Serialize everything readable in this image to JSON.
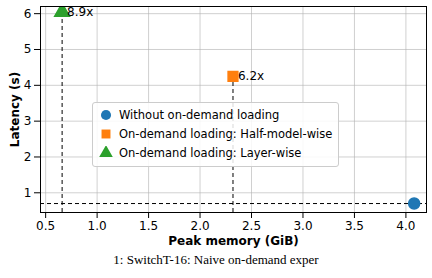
{
  "chart_data": {
    "type": "scatter",
    "caption": "1: SwitchT-16: Naive on-demand exper",
    "x_label": "Peak memory (GiB)",
    "y_label": "Latency (s)",
    "xlim": [
      0.45,
      4.2
    ],
    "xticks": [
      0.5,
      1.0,
      1.5,
      2.0,
      2.5,
      3.0,
      3.5,
      4.0
    ],
    "ylim": [
      0.45,
      6.2
    ],
    "yticks": [
      1,
      2,
      3,
      4,
      5,
      6
    ],
    "grid": true,
    "legend": "center left",
    "series": [
      {
        "name": "Without on-demand loading",
        "color": "#1f77b4",
        "marker": "circle",
        "x": [
          4.08
        ],
        "y": [
          0.7
        ]
      },
      {
        "name": "On-demand loading: Half-model-wise",
        "color": "#ff7f0e",
        "marker": "square",
        "x": [
          2.32
        ],
        "y": [
          4.25
        ],
        "annotation": "6.2x"
      },
      {
        "name": "On-demand loading: Layer-wise",
        "color": "#2ca02c",
        "marker": "triangle",
        "x": [
          0.66
        ],
        "y": [
          6.05
        ],
        "annotation": "8.9x"
      }
    ]
  }
}
